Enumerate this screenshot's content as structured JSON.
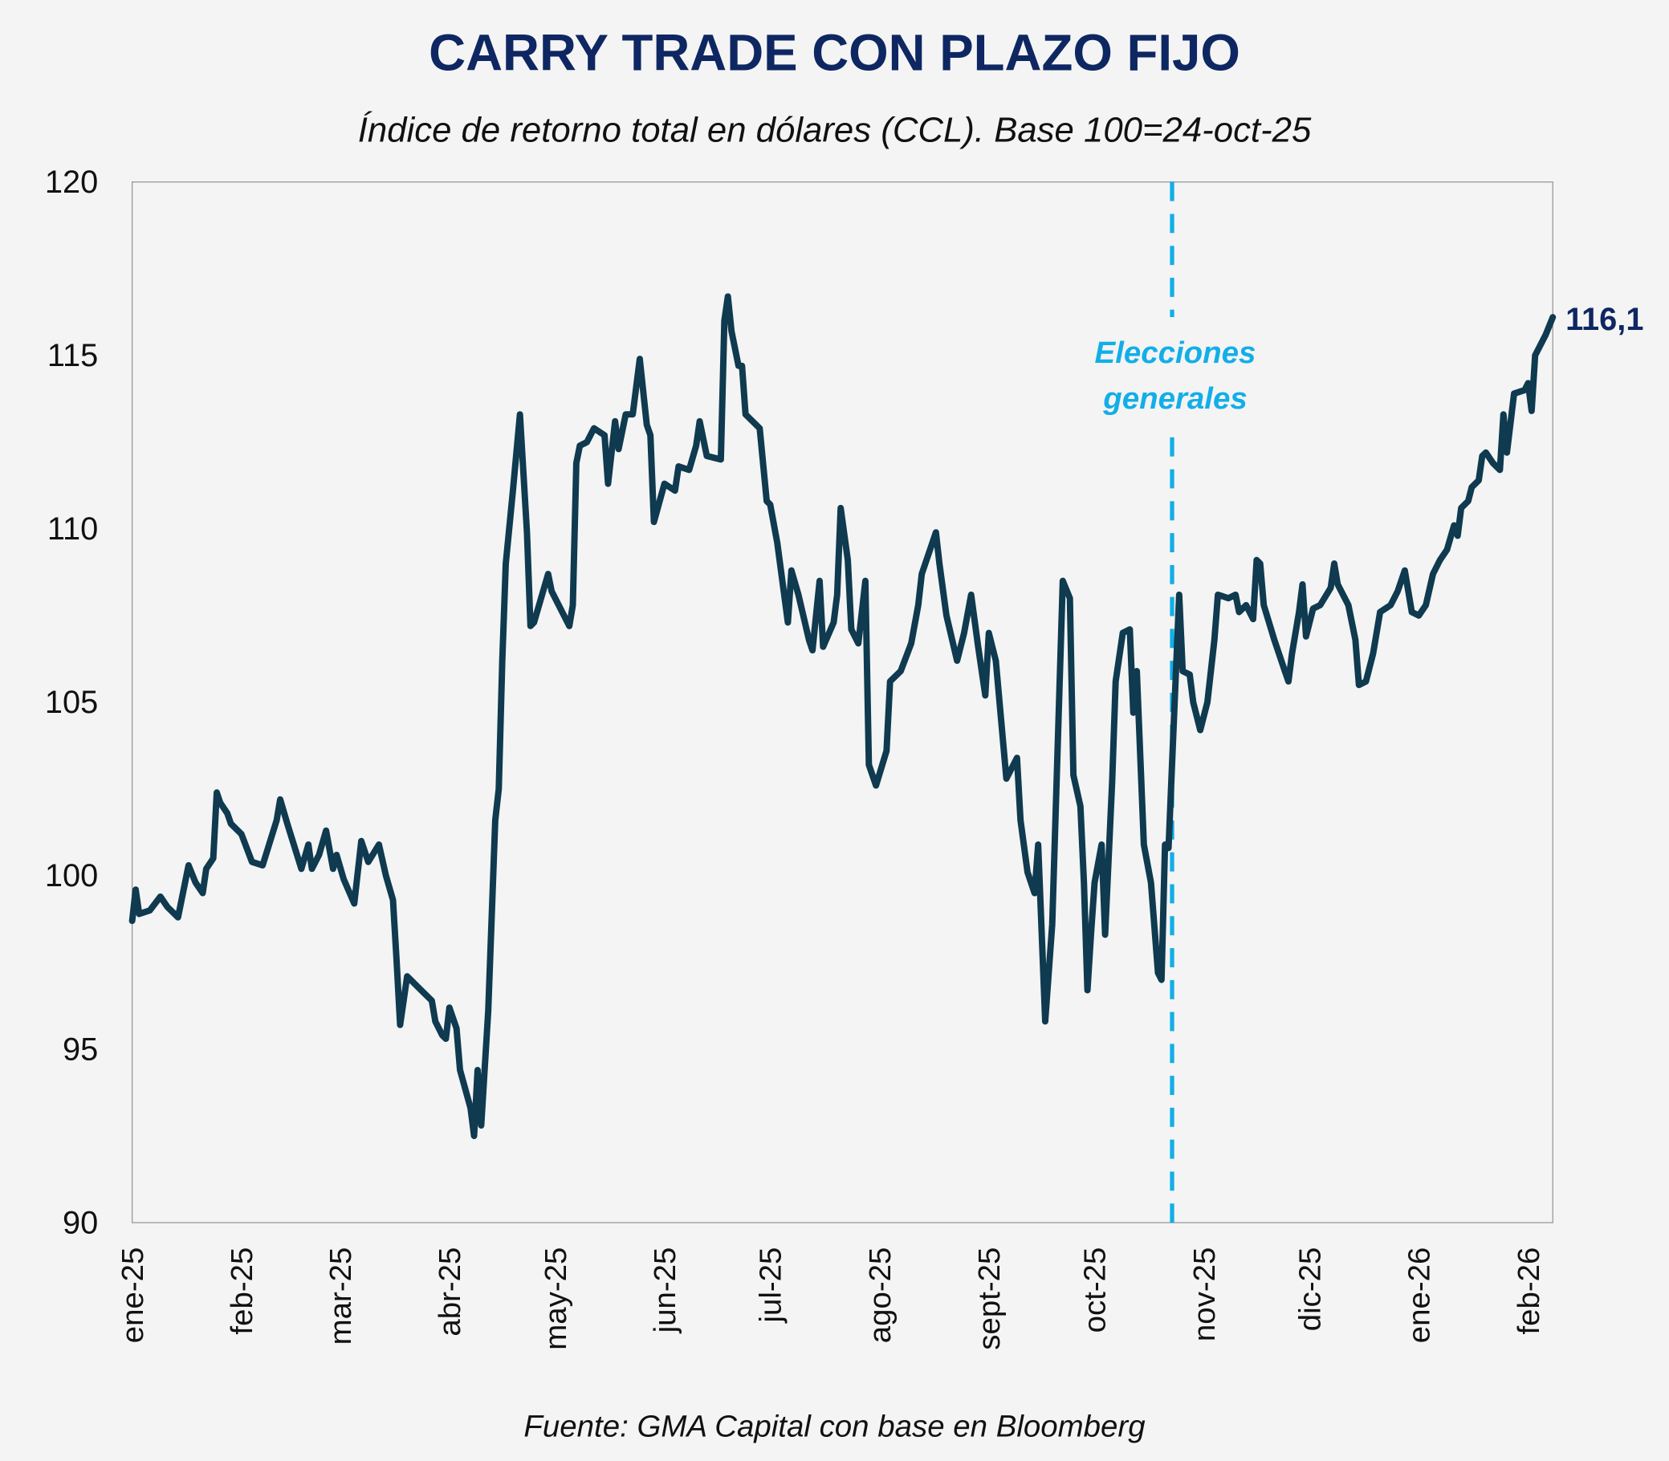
{
  "chart_data": {
    "type": "line",
    "title": "CARRY TRADE CON PLAZO FIJO",
    "subtitle": "Índice de retorno total en dólares (CCL). Base 100=24-oct-25",
    "source": "Fuente: GMA Capital con base en Bloomberg",
    "xlabel": "",
    "ylabel": "",
    "ylim": [
      90,
      120
    ],
    "xlim": [
      "2025-01-01",
      "2026-02-08"
    ],
    "yticks": [
      "90",
      "95",
      "100",
      "105",
      "110",
      "115",
      "120"
    ],
    "xticks": [
      {
        "date": "2025-01-01",
        "label": "ene-25"
      },
      {
        "date": "2025-02-01",
        "label": "feb-25"
      },
      {
        "date": "2025-03-01",
        "label": "mar-25"
      },
      {
        "date": "2025-04-01",
        "label": "abr-25"
      },
      {
        "date": "2025-05-01",
        "label": "may-25"
      },
      {
        "date": "2025-06-01",
        "label": "jun-25"
      },
      {
        "date": "2025-07-01",
        "label": "jul-25"
      },
      {
        "date": "2025-08-01",
        "label": "ago-25"
      },
      {
        "date": "2025-09-01",
        "label": "sept-25"
      },
      {
        "date": "2025-10-01",
        "label": "oct-25"
      },
      {
        "date": "2025-11-01",
        "label": "nov-25"
      },
      {
        "date": "2025-12-01",
        "label": "dic-25"
      },
      {
        "date": "2026-01-01",
        "label": "ene-26"
      },
      {
        "date": "2026-02-01",
        "label": "feb-26"
      }
    ],
    "grid": false,
    "line_color": "#0f3a4f",
    "annotation": {
      "date": "2025-10-23",
      "lines": [
        "Elecciones",
        "generales"
      ],
      "color": "#12aee8",
      "style": "dashed-vertical"
    },
    "end_label": "116,1",
    "series": [
      {
        "points": [
          [
            "2025-01-01",
            98.7
          ],
          [
            "2025-01-02",
            99.6
          ],
          [
            "2025-01-03",
            98.9
          ],
          [
            "2025-01-06",
            99.0
          ],
          [
            "2025-01-09",
            99.4
          ],
          [
            "2025-01-11",
            99.1
          ],
          [
            "2025-01-14",
            98.8
          ],
          [
            "2025-01-15",
            99.3
          ],
          [
            "2025-01-17",
            100.3
          ],
          [
            "2025-01-19",
            99.8
          ],
          [
            "2025-01-21",
            99.5
          ],
          [
            "2025-01-22",
            100.2
          ],
          [
            "2025-01-24",
            100.5
          ],
          [
            "2025-01-25",
            102.4
          ],
          [
            "2025-01-26",
            102.1
          ],
          [
            "2025-01-28",
            101.8
          ],
          [
            "2025-01-29",
            101.5
          ],
          [
            "2025-02-01",
            101.2
          ],
          [
            "2025-02-04",
            100.4
          ],
          [
            "2025-02-07",
            100.3
          ],
          [
            "2025-02-11",
            101.6
          ],
          [
            "2025-02-12",
            102.2
          ],
          [
            "2025-02-14",
            101.5
          ],
          [
            "2025-02-18",
            100.2
          ],
          [
            "2025-02-20",
            100.9
          ],
          [
            "2025-02-21",
            100.2
          ],
          [
            "2025-02-23",
            100.6
          ],
          [
            "2025-02-25",
            101.3
          ],
          [
            "2025-02-27",
            100.2
          ],
          [
            "2025-02-28",
            100.6
          ],
          [
            "2025-03-02",
            99.9
          ],
          [
            "2025-03-05",
            99.2
          ],
          [
            "2025-03-07",
            101.0
          ],
          [
            "2025-03-09",
            100.4
          ],
          [
            "2025-03-12",
            100.9
          ],
          [
            "2025-03-14",
            100.0
          ],
          [
            "2025-03-16",
            99.3
          ],
          [
            "2025-03-17",
            97.6
          ],
          [
            "2025-03-18",
            95.7
          ],
          [
            "2025-03-20",
            97.1
          ],
          [
            "2025-03-24",
            96.7
          ],
          [
            "2025-03-27",
            96.4
          ],
          [
            "2025-03-28",
            95.8
          ],
          [
            "2025-03-30",
            95.4
          ],
          [
            "2025-03-31",
            95.3
          ],
          [
            "2025-04-01",
            96.2
          ],
          [
            "2025-04-03",
            95.6
          ],
          [
            "2025-04-04",
            94.4
          ],
          [
            "2025-04-07",
            93.3
          ],
          [
            "2025-04-08",
            92.5
          ],
          [
            "2025-04-09",
            94.4
          ],
          [
            "2025-04-10",
            92.8
          ],
          [
            "2025-04-12",
            96.1
          ],
          [
            "2025-04-14",
            101.6
          ],
          [
            "2025-04-15",
            102.5
          ],
          [
            "2025-04-16",
            106.2
          ],
          [
            "2025-04-17",
            109.0
          ],
          [
            "2025-04-19",
            111.1
          ],
          [
            "2025-04-21",
            113.3
          ],
          [
            "2025-04-23",
            109.9
          ],
          [
            "2025-04-24",
            107.2
          ],
          [
            "2025-04-25",
            107.3
          ],
          [
            "2025-04-29",
            108.7
          ],
          [
            "2025-04-30",
            108.2
          ],
          [
            "2025-05-05",
            107.2
          ],
          [
            "2025-05-06",
            107.8
          ],
          [
            "2025-05-07",
            111.9
          ],
          [
            "2025-05-08",
            112.4
          ],
          [
            "2025-05-10",
            112.5
          ],
          [
            "2025-05-12",
            112.9
          ],
          [
            "2025-05-15",
            112.7
          ],
          [
            "2025-05-16",
            111.3
          ],
          [
            "2025-05-18",
            113.1
          ],
          [
            "2025-05-19",
            112.3
          ],
          [
            "2025-05-21",
            113.3
          ],
          [
            "2025-05-23",
            113.3
          ],
          [
            "2025-05-25",
            114.9
          ],
          [
            "2025-05-27",
            113.0
          ],
          [
            "2025-05-28",
            112.7
          ],
          [
            "2025-05-29",
            110.2
          ],
          [
            "2025-06-01",
            111.3
          ],
          [
            "2025-06-04",
            111.1
          ],
          [
            "2025-06-05",
            111.8
          ],
          [
            "2025-06-08",
            111.7
          ],
          [
            "2025-06-10",
            112.4
          ],
          [
            "2025-06-11",
            113.1
          ],
          [
            "2025-06-13",
            112.1
          ],
          [
            "2025-06-17",
            112.0
          ],
          [
            "2025-06-18",
            116.0
          ],
          [
            "2025-06-19",
            116.7
          ],
          [
            "2025-06-20",
            115.7
          ],
          [
            "2025-06-22",
            114.7
          ],
          [
            "2025-06-23",
            114.7
          ],
          [
            "2025-06-24",
            113.3
          ],
          [
            "2025-06-26",
            113.1
          ],
          [
            "2025-06-28",
            112.9
          ],
          [
            "2025-06-30",
            110.8
          ],
          [
            "2025-07-01",
            110.7
          ],
          [
            "2025-07-03",
            109.6
          ],
          [
            "2025-07-06",
            107.3
          ],
          [
            "2025-07-07",
            108.8
          ],
          [
            "2025-07-09",
            108.1
          ],
          [
            "2025-07-12",
            106.8
          ],
          [
            "2025-07-13",
            106.5
          ],
          [
            "2025-07-15",
            108.5
          ],
          [
            "2025-07-16",
            106.6
          ],
          [
            "2025-07-19",
            107.3
          ],
          [
            "2025-07-20",
            108.1
          ],
          [
            "2025-07-21",
            110.6
          ],
          [
            "2025-07-23",
            109.1
          ],
          [
            "2025-07-24",
            107.1
          ],
          [
            "2025-07-26",
            106.7
          ],
          [
            "2025-07-28",
            108.5
          ],
          [
            "2025-07-29",
            103.2
          ],
          [
            "2025-07-31",
            102.6
          ],
          [
            "2025-08-03",
            103.6
          ],
          [
            "2025-08-04",
            105.6
          ],
          [
            "2025-08-07",
            105.9
          ],
          [
            "2025-08-10",
            106.7
          ],
          [
            "2025-08-12",
            107.8
          ],
          [
            "2025-08-13",
            108.7
          ],
          [
            "2025-08-17",
            109.9
          ],
          [
            "2025-08-18",
            109.0
          ],
          [
            "2025-08-20",
            107.5
          ],
          [
            "2025-08-23",
            106.2
          ],
          [
            "2025-08-25",
            107.0
          ],
          [
            "2025-08-27",
            108.1
          ],
          [
            "2025-08-29",
            106.6
          ],
          [
            "2025-08-31",
            105.2
          ],
          [
            "2025-09-01",
            107.0
          ],
          [
            "2025-09-03",
            106.2
          ],
          [
            "2025-09-06",
            102.8
          ],
          [
            "2025-09-09",
            103.4
          ],
          [
            "2025-09-10",
            101.6
          ],
          [
            "2025-09-12",
            100.1
          ],
          [
            "2025-09-14",
            99.5
          ],
          [
            "2025-09-15",
            100.9
          ],
          [
            "2025-09-17",
            95.8
          ],
          [
            "2025-09-19",
            98.6
          ],
          [
            "2025-09-22",
            108.5
          ],
          [
            "2025-09-24",
            108.0
          ],
          [
            "2025-09-25",
            102.9
          ],
          [
            "2025-09-27",
            102.0
          ],
          [
            "2025-09-28",
            99.8
          ],
          [
            "2025-09-29",
            96.7
          ],
          [
            "2025-09-30",
            98.3
          ],
          [
            "2025-10-01",
            99.8
          ],
          [
            "2025-10-03",
            100.9
          ],
          [
            "2025-10-04",
            98.3
          ],
          [
            "2025-10-06",
            102.7
          ],
          [
            "2025-10-07",
            105.6
          ],
          [
            "2025-10-09",
            107.0
          ],
          [
            "2025-10-11",
            107.1
          ],
          [
            "2025-10-12",
            104.7
          ],
          [
            "2025-10-13",
            105.9
          ],
          [
            "2025-10-15",
            100.9
          ],
          [
            "2025-10-17",
            99.8
          ],
          [
            "2025-10-19",
            97.2
          ],
          [
            "2025-10-20",
            97.0
          ],
          [
            "2025-10-21",
            100.9
          ],
          [
            "2025-10-22",
            100.8
          ],
          [
            "2025-10-25",
            108.1
          ],
          [
            "2025-10-26",
            105.9
          ],
          [
            "2025-10-28",
            105.8
          ],
          [
            "2025-10-29",
            105.0
          ],
          [
            "2025-10-31",
            104.2
          ],
          [
            "2025-11-02",
            105.0
          ],
          [
            "2025-11-04",
            106.8
          ],
          [
            "2025-11-05",
            108.1
          ],
          [
            "2025-11-08",
            108.0
          ],
          [
            "2025-11-10",
            108.1
          ],
          [
            "2025-11-11",
            107.6
          ],
          [
            "2025-11-13",
            107.8
          ],
          [
            "2025-11-15",
            107.4
          ],
          [
            "2025-11-16",
            109.1
          ],
          [
            "2025-11-17",
            109.0
          ],
          [
            "2025-11-18",
            107.8
          ],
          [
            "2025-11-21",
            106.8
          ],
          [
            "2025-11-24",
            105.9
          ],
          [
            "2025-11-25",
            105.6
          ],
          [
            "2025-11-26",
            106.4
          ],
          [
            "2025-11-28",
            107.6
          ],
          [
            "2025-11-29",
            108.4
          ],
          [
            "2025-11-30",
            106.9
          ],
          [
            "2025-12-02",
            107.7
          ],
          [
            "2025-12-04",
            107.8
          ],
          [
            "2025-12-07",
            108.3
          ],
          [
            "2025-12-08",
            109.0
          ],
          [
            "2025-12-09",
            108.4
          ],
          [
            "2025-12-12",
            107.8
          ],
          [
            "2025-12-14",
            106.8
          ],
          [
            "2025-12-15",
            105.5
          ],
          [
            "2025-12-17",
            105.6
          ],
          [
            "2025-12-19",
            106.4
          ],
          [
            "2025-12-21",
            107.6
          ],
          [
            "2025-12-24",
            107.8
          ],
          [
            "2025-12-26",
            108.2
          ],
          [
            "2025-12-28",
            108.8
          ],
          [
            "2025-12-30",
            107.6
          ],
          [
            "2026-01-01",
            107.5
          ],
          [
            "2026-01-03",
            107.8
          ],
          [
            "2026-01-05",
            108.7
          ],
          [
            "2026-01-07",
            109.1
          ],
          [
            "2026-01-09",
            109.4
          ],
          [
            "2026-01-11",
            110.1
          ],
          [
            "2026-01-12",
            109.8
          ],
          [
            "2026-01-13",
            110.6
          ],
          [
            "2026-01-15",
            110.8
          ],
          [
            "2026-01-16",
            111.2
          ],
          [
            "2026-01-18",
            111.4
          ],
          [
            "2026-01-19",
            112.1
          ],
          [
            "2026-01-20",
            112.2
          ],
          [
            "2026-01-22",
            111.9
          ],
          [
            "2026-01-24",
            111.7
          ],
          [
            "2026-01-25",
            113.3
          ],
          [
            "2026-01-26",
            112.2
          ],
          [
            "2026-01-28",
            113.9
          ],
          [
            "2026-01-31",
            114.0
          ],
          [
            "2026-02-01",
            114.2
          ],
          [
            "2026-02-02",
            113.4
          ],
          [
            "2026-02-03",
            115.0
          ],
          [
            "2026-02-06",
            115.6
          ],
          [
            "2026-02-08",
            116.1
          ]
        ]
      }
    ]
  }
}
